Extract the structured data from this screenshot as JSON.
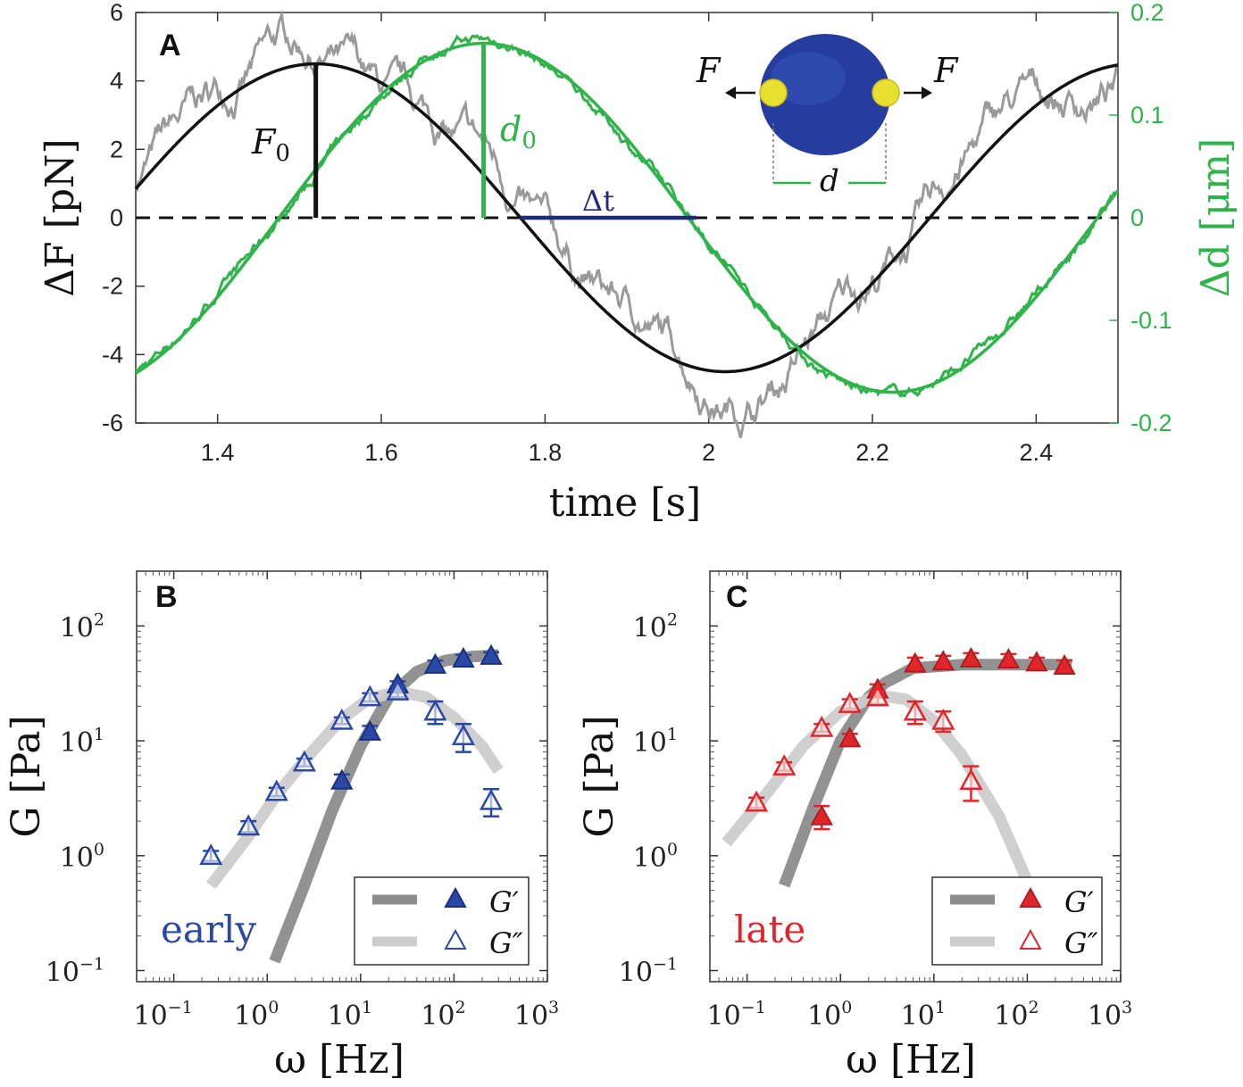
{
  "colors": {
    "force_fit": "#111111",
    "force_raw": "#9a9a9a",
    "disp": "#2fb34a",
    "dt": "#1f2a7a",
    "blue_marker": "#2a49a6",
    "blue_marker_dark": "#1c2f7e",
    "red_marker": "#e0262a",
    "red_marker_dark": "#b01c20",
    "gprime_line": "#8c8c8c",
    "gdprime_line": "#cccccc"
  },
  "panelA": {
    "label": "A",
    "ylabel_left": "ΔF [pN]",
    "ylabel_right": "Δd [μm]",
    "xlabel": "time [s]",
    "xticks": [
      "1.4",
      "1.6",
      "1.8",
      "2",
      "2.2",
      "2.4"
    ],
    "yticks_left": [
      "6",
      "4",
      "2",
      "0",
      "-2",
      "-4",
      "-6"
    ],
    "yticks_right": [
      "0.2",
      "0.1",
      "0",
      "-0.1",
      "-0.2"
    ],
    "F0_label": "F",
    "F0_sub": "0",
    "d0_label": "d",
    "d0_sub": "0",
    "dt_label": "Δt",
    "inset": {
      "F_left": "F",
      "F_right": "F",
      "d_label": "d"
    }
  },
  "panelB": {
    "label": "B",
    "tag": "early",
    "ylabel": "G [Pa]",
    "xlabel": "ω [Hz]",
    "legend": [
      "G′",
      "G″"
    ]
  },
  "panelC": {
    "label": "C",
    "tag": "late",
    "ylabel": "G [Pa]",
    "xlabel": "ω [Hz]",
    "legend": [
      "G′",
      "G″"
    ]
  },
  "chart_data": [
    {
      "type": "line",
      "panel": "A",
      "xlim": [
        1.3,
        2.5
      ],
      "ylim_left": [
        -6,
        6
      ],
      "ylim_right": [
        -0.2,
        0.2
      ],
      "grid": false,
      "series": [
        {
          "axis": "left",
          "fit": {
            "F0": 4.5,
            "period_s": 1.0,
            "peak_time_s": 1.52
          }
        },
        {
          "axis": "right",
          "fit": {
            "d0": 0.17,
            "period_s": 1.0,
            "peak_time_s": 1.725
          }
        }
      ],
      "annotations": {
        "F0_time": 1.52,
        "d0_time": 1.725,
        "dt_from": 1.77,
        "dt_to": 1.985
      }
    },
    {
      "type": "scatter",
      "panel": "B",
      "xscale": "log",
      "yscale": "log",
      "xlim": [
        0.04,
        1000
      ],
      "ylim": [
        0.08,
        300
      ],
      "xticks": [
        0.1,
        1,
        10,
        100,
        1000
      ],
      "yticks": [
        0.1,
        1,
        10,
        100
      ],
      "legend_position": "bottom-right",
      "series": [
        {
          "x": [
            6.3,
            12.6,
            25,
            63,
            126,
            250
          ],
          "values": [
            4.5,
            12,
            31,
            46,
            52,
            55
          ],
          "err": [
            0.6,
            1.5,
            2,
            4,
            4,
            4
          ]
        },
        {
          "x": [
            0.25,
            0.63,
            1.26,
            2.5,
            6.3,
            12.6,
            25,
            63,
            126,
            250
          ],
          "values": [
            1.0,
            1.8,
            3.6,
            6.5,
            15,
            24,
            27,
            18,
            11,
            3.0
          ],
          "err": [
            0.1,
            0.2,
            0.3,
            0.5,
            1,
            2,
            3,
            4,
            3,
            0.8
          ]
        }
      ],
      "fit_lines": [
        {
          "x": [
            1.2,
            2.5,
            5,
            10,
            20,
            40,
            80,
            150,
            300
          ],
          "y": [
            0.12,
            0.55,
            2.5,
            9,
            24,
            40,
            50,
            54,
            56
          ]
        },
        {
          "x": [
            0.25,
            0.6,
            1.3,
            3,
            6,
            12,
            25,
            50,
            100,
            200,
            300
          ],
          "y": [
            0.55,
            1.4,
            3.5,
            8,
            15,
            23,
            27,
            24,
            16,
            9,
            5.5
          ]
        }
      ]
    },
    {
      "type": "scatter",
      "panel": "C",
      "xscale": "log",
      "yscale": "log",
      "xlim": [
        0.04,
        1000
      ],
      "ylim": [
        0.08,
        300
      ],
      "xticks": [
        0.1,
        1,
        10,
        100,
        1000
      ],
      "yticks": [
        0.1,
        1,
        10,
        100
      ],
      "legend_position": "bottom-right",
      "series": [
        {
          "x": [
            0.63,
            1.26,
            2.5,
            6.3,
            12.6,
            25,
            63,
            126,
            250
          ],
          "values": [
            2.2,
            10.5,
            28,
            47,
            49,
            52,
            51,
            48,
            45
          ],
          "err": [
            0.5,
            1,
            3,
            6,
            6,
            6,
            6,
            5,
            5
          ]
        },
        {
          "x": [
            0.126,
            0.25,
            0.63,
            1.26,
            2.5,
            6.3,
            12.6,
            25
          ],
          "values": [
            2.9,
            6.0,
            13,
            21,
            24,
            18,
            15,
            4.5
          ],
          "err": [
            0.3,
            0.5,
            1,
            2,
            3,
            4,
            3,
            1.5
          ]
        }
      ],
      "fit_lines": [
        {
          "x": [
            0.25,
            0.5,
            1,
            2,
            3,
            6,
            20,
            60,
            150,
            300
          ],
          "y": [
            0.55,
            2.5,
            10,
            24,
            32,
            43,
            46,
            46,
            46,
            46
          ]
        },
        {
          "x": [
            0.06,
            0.15,
            0.4,
            1,
            2.5,
            5,
            10,
            20,
            50,
            100,
            200
          ],
          "y": [
            1.3,
            3.2,
            9,
            18,
            25,
            23,
            15,
            7.5,
            2.2,
            0.6,
            0.2
          ]
        }
      ]
    }
  ]
}
